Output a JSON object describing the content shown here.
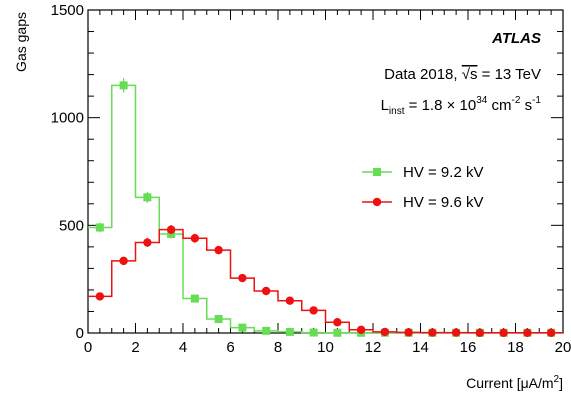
{
  "chart_data": {
    "type": "histogram-step",
    "xlabel": "Current [μA/m²]",
    "xlabel_main": "Current [μA/m",
    "xlabel_sup": "2",
    "xlabel_end": "]",
    "ylabel": "Gas gaps",
    "xlim": [
      0,
      20
    ],
    "ylim": [
      0,
      1500
    ],
    "x_ticks": [
      0,
      2,
      4,
      6,
      8,
      10,
      12,
      14,
      16,
      18,
      20
    ],
    "y_ticks": [
      0,
      500,
      1000,
      1500
    ],
    "legend_position": "right-center",
    "annotations": {
      "experiment": "ATLAS",
      "dataset_prefix": "Data 2018, ",
      "dataset_sqrt": "√s",
      "dataset_suffix": " = 13 TeV",
      "lumi_L": "L",
      "lumi_sub": "inst",
      "lumi_mid": " = 1.8 × 10",
      "lumi_exp": "34",
      "lumi_unit1": " cm",
      "lumi_unit1_exp": "-2",
      "lumi_unit2": " s",
      "lumi_unit2_exp": "-1"
    },
    "bin_edges": [
      0,
      1,
      2,
      3,
      4,
      5,
      6,
      7,
      8,
      9,
      10,
      11,
      12,
      13,
      14,
      15,
      16,
      17,
      18,
      19,
      20
    ],
    "series": [
      {
        "name": "HV = 9.2 kV",
        "color": "#66dd55",
        "marker": "square",
        "values": [
          490,
          1150,
          630,
          460,
          160,
          65,
          25,
          10,
          5,
          2,
          1,
          1,
          1,
          1,
          1,
          1,
          1,
          1,
          1,
          1
        ]
      },
      {
        "name": "HV = 9.6 kV",
        "color": "#ee1111",
        "marker": "circle",
        "values": [
          170,
          335,
          420,
          480,
          440,
          385,
          255,
          195,
          150,
          105,
          50,
          15,
          5,
          3,
          2,
          2,
          1,
          1,
          1,
          1
        ]
      }
    ]
  }
}
